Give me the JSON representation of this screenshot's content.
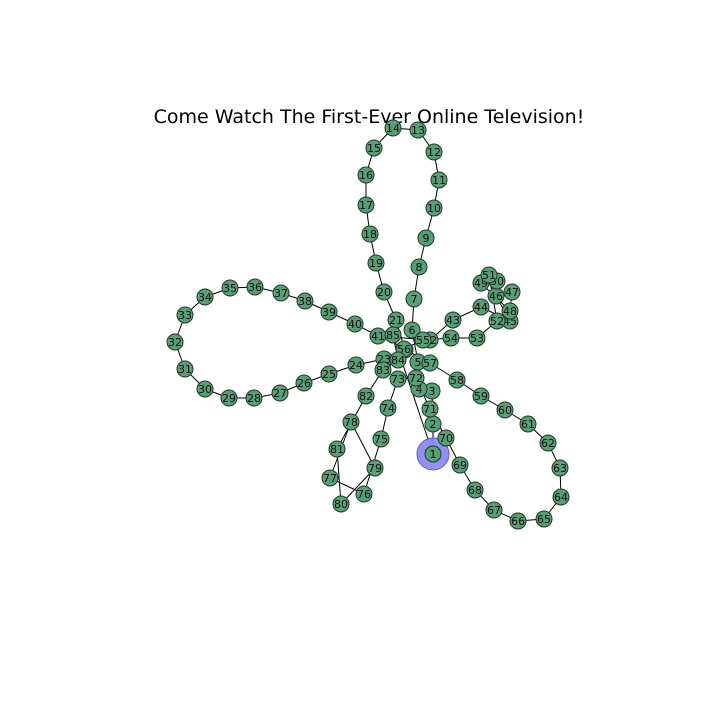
{
  "title": "Come Watch The First-Ever Online Television!",
  "highlighted_node": "1",
  "colors": {
    "node": "#5a9e76",
    "node_stroke": "#1f3a29",
    "highlight": "#8c8cf0",
    "edge": "#000000"
  },
  "graph": {
    "nodes": [
      "1",
      "2",
      "3",
      "4",
      "5",
      "6",
      "7",
      "8",
      "9",
      "10",
      "11",
      "12",
      "13",
      "14",
      "15",
      "16",
      "17",
      "18",
      "19",
      "20",
      "21",
      "22",
      "23",
      "24",
      "25",
      "26",
      "27",
      "28",
      "29",
      "30",
      "31",
      "32",
      "33",
      "34",
      "35",
      "36",
      "37",
      "38",
      "39",
      "40",
      "41",
      "42",
      "43",
      "44",
      "45",
      "46",
      "47",
      "48",
      "49",
      "50",
      "51",
      "52",
      "53",
      "54",
      "55",
      "56",
      "57",
      "58",
      "59",
      "60",
      "61",
      "62",
      "63",
      "64",
      "65",
      "66",
      "67",
      "68",
      "69",
      "70",
      "71",
      "72",
      "73",
      "74",
      "75",
      "76",
      "77",
      "78",
      "79",
      "80",
      "81",
      "82",
      "83",
      "84",
      "85"
    ],
    "edges": [
      [
        "1",
        "2"
      ],
      [
        "2",
        "3"
      ],
      [
        "3",
        "4"
      ],
      [
        "4",
        "5"
      ],
      [
        "5",
        "6"
      ],
      [
        "6",
        "7"
      ],
      [
        "7",
        "8"
      ],
      [
        "8",
        "9"
      ],
      [
        "9",
        "10"
      ],
      [
        "10",
        "11"
      ],
      [
        "11",
        "12"
      ],
      [
        "12",
        "13"
      ],
      [
        "13",
        "14"
      ],
      [
        "14",
        "15"
      ],
      [
        "15",
        "16"
      ],
      [
        "16",
        "17"
      ],
      [
        "17",
        "18"
      ],
      [
        "18",
        "19"
      ],
      [
        "19",
        "20"
      ],
      [
        "20",
        "21"
      ],
      [
        "21",
        "22"
      ],
      [
        "22",
        "23"
      ],
      [
        "23",
        "24"
      ],
      [
        "24",
        "25"
      ],
      [
        "25",
        "26"
      ],
      [
        "26",
        "27"
      ],
      [
        "27",
        "28"
      ],
      [
        "28",
        "29"
      ],
      [
        "29",
        "30"
      ],
      [
        "30",
        "31"
      ],
      [
        "31",
        "32"
      ],
      [
        "32",
        "33"
      ],
      [
        "33",
        "34"
      ],
      [
        "34",
        "35"
      ],
      [
        "35",
        "36"
      ],
      [
        "36",
        "37"
      ],
      [
        "37",
        "38"
      ],
      [
        "38",
        "39"
      ],
      [
        "39",
        "40"
      ],
      [
        "40",
        "41"
      ],
      [
        "41",
        "42"
      ],
      [
        "42",
        "43"
      ],
      [
        "43",
        "44"
      ],
      [
        "44",
        "45"
      ],
      [
        "45",
        "46"
      ],
      [
        "46",
        "47"
      ],
      [
        "47",
        "48"
      ],
      [
        "48",
        "49"
      ],
      [
        "49",
        "50"
      ],
      [
        "50",
        "51"
      ],
      [
        "51",
        "52"
      ],
      [
        "52",
        "53"
      ],
      [
        "53",
        "54"
      ],
      [
        "54",
        "55"
      ],
      [
        "55",
        "56"
      ],
      [
        "56",
        "57"
      ],
      [
        "57",
        "58"
      ],
      [
        "58",
        "59"
      ],
      [
        "59",
        "60"
      ],
      [
        "60",
        "61"
      ],
      [
        "61",
        "62"
      ],
      [
        "62",
        "63"
      ],
      [
        "63",
        "64"
      ],
      [
        "64",
        "65"
      ],
      [
        "65",
        "66"
      ],
      [
        "66",
        "67"
      ],
      [
        "67",
        "68"
      ],
      [
        "68",
        "69"
      ],
      [
        "69",
        "70"
      ],
      [
        "70",
        "71"
      ],
      [
        "71",
        "72"
      ],
      [
        "72",
        "73"
      ],
      [
        "73",
        "74"
      ],
      [
        "74",
        "75"
      ],
      [
        "75",
        "76"
      ],
      [
        "76",
        "77"
      ],
      [
        "77",
        "78"
      ],
      [
        "78",
        "79"
      ],
      [
        "79",
        "80"
      ],
      [
        "80",
        "81"
      ],
      [
        "81",
        "82"
      ],
      [
        "82",
        "83"
      ],
      [
        "83",
        "84"
      ],
      [
        "84",
        "85"
      ],
      [
        "85",
        "1"
      ]
    ]
  }
}
